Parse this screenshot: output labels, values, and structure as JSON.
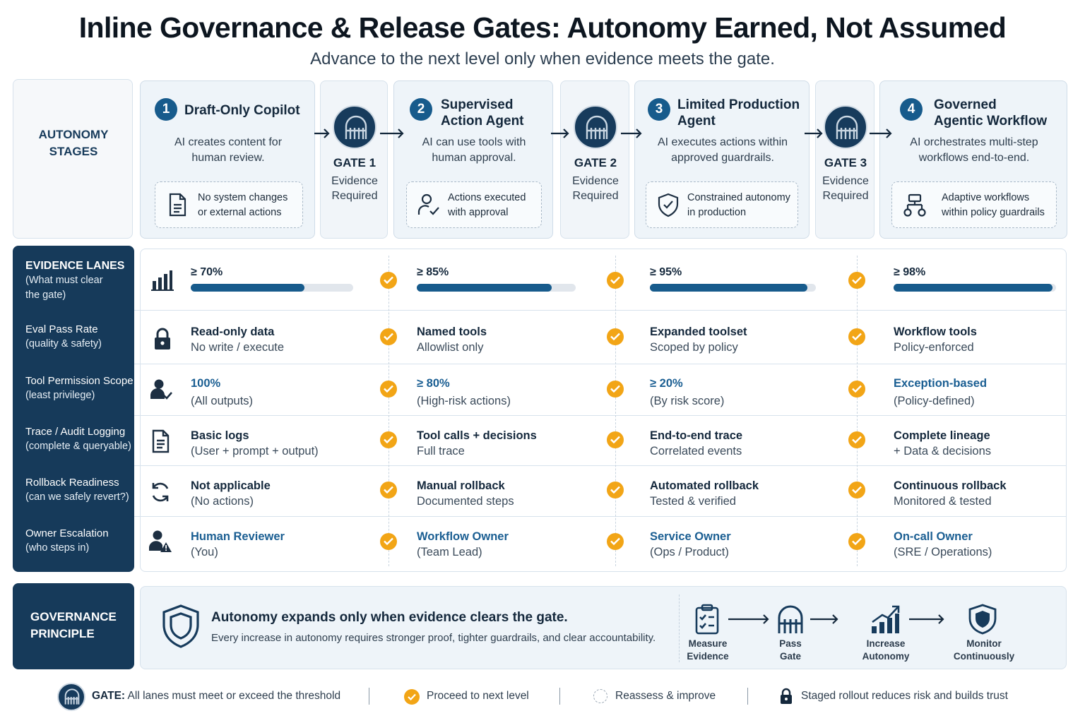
{
  "header": {
    "title": "Inline Governance & Release Gates: Autonomy Earned, Not Assumed",
    "subtitle": "Advance to the next level only when evidence meets the gate."
  },
  "stages_label": {
    "line1": "AUTONOMY",
    "line2": "STAGES"
  },
  "stages": [
    {
      "num": "1",
      "name1": "Draft-Only Copilot",
      "name2": "",
      "desc1": "AI creates content for",
      "desc2": "human review.",
      "box1": "No system changes",
      "box2": "or external actions",
      "icon": "document-icon"
    },
    {
      "num": "2",
      "name1": "Supervised",
      "name2": "Action Agent",
      "desc1": "AI can use tools with",
      "desc2": "human approval.",
      "box1": "Actions executed",
      "box2": "with approval",
      "icon": "user-check-icon"
    },
    {
      "num": "3",
      "name1": "Limited Production",
      "name2": "Agent",
      "desc1": "AI executes actions within",
      "desc2": "approved guardrails.",
      "box1": "Constrained autonomy",
      "box2": "in production",
      "icon": "shield-check-icon"
    },
    {
      "num": "4",
      "name1": "Governed",
      "name2": "Agentic Workflow",
      "desc1": "AI orchestrates multi-step",
      "desc2": "workflows end-to-end.",
      "box1": "Adaptive workflows",
      "box2": "within policy guardrails",
      "icon": "workflow-icon"
    }
  ],
  "gates": [
    {
      "title": "GATE 1",
      "sub1": "Evidence",
      "sub2": "Required"
    },
    {
      "title": "GATE 2",
      "sub1": "Evidence",
      "sub2": "Required"
    },
    {
      "title": "GATE 3",
      "sub1": "Evidence",
      "sub2": "Required"
    }
  ],
  "lanes_header": {
    "title": "EVIDENCE LANES",
    "sub1": "(What must clear",
    "sub2": "the gate)"
  },
  "thresholds": [
    {
      "label": "≥ 70%",
      "value": 0.7
    },
    {
      "label": "≥ 85%",
      "value": 0.85
    },
    {
      "label": "≥ 95%",
      "value": 0.95
    },
    {
      "label": "≥ 98%",
      "value": 0.98
    }
  ],
  "lanes": [
    {
      "name": "Eval Pass Rate",
      "sub": "(quality & safety)",
      "icon": "lock-icon",
      "cells": [
        {
          "main": "Read-only data",
          "sec": "No write / execute",
          "blue": false
        },
        {
          "main": "Named tools",
          "sec": "Allowlist only",
          "blue": false
        },
        {
          "main": "Expanded toolset",
          "sec": "Scoped by policy",
          "blue": false
        },
        {
          "main": "Workflow tools",
          "sec": "Policy-enforced",
          "blue": false
        }
      ]
    },
    {
      "name": "Tool Permission Scope",
      "sub": "(least privilege)",
      "icon": "user-check-icon",
      "cells": [
        {
          "main": "100%",
          "sec": "(All outputs)",
          "blue": true
        },
        {
          "main": "≥ 80%",
          "sec": "(High-risk actions)",
          "blue": true
        },
        {
          "main": "≥ 20%",
          "sec": "(By risk score)",
          "blue": true
        },
        {
          "main": "Exception-based",
          "sec": "(Policy-defined)",
          "blue": true
        }
      ]
    },
    {
      "name": "Trace / Audit Logging",
      "sub": "(complete & queryable)",
      "icon": "document-icon",
      "cells": [
        {
          "main": "Basic logs",
          "sec": "(User + prompt + output)",
          "blue": false
        },
        {
          "main": "Tool calls + decisions",
          "sec": "Full trace",
          "blue": false
        },
        {
          "main": "End-to-end trace",
          "sec": "Correlated events",
          "blue": false
        },
        {
          "main": "Complete lineage",
          "sec": "+ Data & decisions",
          "blue": false
        }
      ]
    },
    {
      "name": "Rollback Readiness",
      "sub": "(can we safely revert?)",
      "icon": "refresh-icon",
      "cells": [
        {
          "main": "Not applicable",
          "sec": "(No actions)",
          "blue": false
        },
        {
          "main": "Manual rollback",
          "sec": "Documented steps",
          "blue": false
        },
        {
          "main": "Automated rollback",
          "sec": "Tested & verified",
          "blue": false
        },
        {
          "main": "Continuous rollback",
          "sec": "Monitored & tested",
          "blue": false
        }
      ]
    },
    {
      "name": "Owner Escalation",
      "sub": "(who steps in)",
      "icon": "user-alert-icon",
      "cells": [
        {
          "main": "Human Reviewer",
          "sec": "(You)",
          "blue": true
        },
        {
          "main": "Workflow Owner",
          "sec": "(Team Lead)",
          "blue": true
        },
        {
          "main": "Service Owner",
          "sec": "(Ops / Product)",
          "blue": true
        },
        {
          "main": "On-call Owner",
          "sec": "(SRE / Operations)",
          "blue": true
        }
      ]
    }
  ],
  "principle": {
    "label1": "GOVERNANCE",
    "label2": "PRINCIPLE",
    "title": "Autonomy expands only when evidence clears the gate.",
    "sub": "Every increase in autonomy requires stronger proof, tighter guardrails, and clear accountability.",
    "flow": [
      {
        "l1": "Measure",
        "l2": "Evidence",
        "icon": "clipboard-check-icon"
      },
      {
        "l1": "Pass",
        "l2": "Gate",
        "icon": "gate-icon"
      },
      {
        "l1": "Increase",
        "l2": "Autonomy",
        "icon": "growth-chart-icon"
      },
      {
        "l1": "Monitor",
        "l2": "Continuously",
        "icon": "shield-icon"
      }
    ]
  },
  "legend": {
    "gate_bold": "GATE:",
    "gate_text": "All lanes must meet or exceed the threshold",
    "proceed": "Proceed to next level",
    "reassess": "Reassess & improve",
    "staged": "Staged rollout reduces risk and builds trust"
  },
  "colors": {
    "navy": "#163a5a",
    "accent": "#175b8c",
    "check": "#f2a516",
    "panel": "#eef4f9"
  }
}
